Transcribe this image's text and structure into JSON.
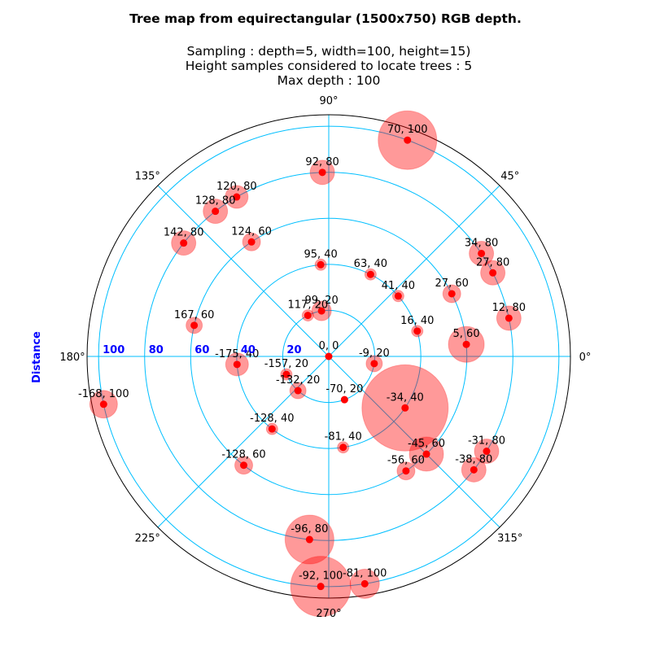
{
  "chart_data": {
    "type": "scatter",
    "projection": "polar",
    "title": "Tree map from equirectangular (1500x750) RGB depth.",
    "subtitle_lines": [
      "Sampling : depth=5, width=100, height=15)",
      "Height samples considered to locate trees : 5",
      "Max depth : 100"
    ],
    "ylabel": "Distance",
    "rlim": [
      0,
      105
    ],
    "r_ticks": [
      20,
      40,
      60,
      80,
      100
    ],
    "r_tick_labels": [
      "20",
      "40",
      "60",
      "80",
      "100"
    ],
    "theta_tick_labels": [
      "0°",
      "45°",
      "90°",
      "135°",
      "180°",
      "225°",
      "270°",
      "315°"
    ],
    "theta_ticks_deg": [
      0,
      45,
      90,
      135,
      180,
      225,
      270,
      315
    ],
    "grid": true,
    "colors": {
      "grid": "#00bfff",
      "point": "#ff0000",
      "bubble": "#ff0000",
      "bubble_alpha": 0.4,
      "r_label": "#0000ff",
      "frame": "#000000"
    },
    "points": [
      {
        "angle": 70,
        "distance": 100,
        "label": "70, 100",
        "size": 36
      },
      {
        "angle": 92,
        "distance": 80,
        "label": "92, 80",
        "size": 15
      },
      {
        "angle": 120,
        "distance": 80,
        "label": "120, 80",
        "size": 14
      },
      {
        "angle": 128,
        "distance": 80,
        "label": "128, 80",
        "size": 15
      },
      {
        "angle": 142,
        "distance": 80,
        "label": "142, 80",
        "size": 15
      },
      {
        "angle": 124,
        "distance": 60,
        "label": "124, 60",
        "size": 11
      },
      {
        "angle": 34,
        "distance": 80,
        "label": "34, 80",
        "size": 15
      },
      {
        "angle": 27,
        "distance": 80,
        "label": "27, 80",
        "size": 15
      },
      {
        "angle": 12,
        "distance": 80,
        "label": "12, 80",
        "size": 15
      },
      {
        "angle": 27,
        "distance": 60,
        "label": "27, 60",
        "size": 11
      },
      {
        "angle": 5,
        "distance": 60,
        "label": "5, 60",
        "size": 22
      },
      {
        "angle": 95,
        "distance": 40,
        "label": "95, 40",
        "size": 7
      },
      {
        "angle": 63,
        "distance": 40,
        "label": "63, 40",
        "size": 7
      },
      {
        "angle": 41,
        "distance": 40,
        "label": "41, 40",
        "size": 7
      },
      {
        "angle": 16,
        "distance": 40,
        "label": "16, 40",
        "size": 7
      },
      {
        "angle": 117,
        "distance": 20,
        "label": "117, 20",
        "size": 7
      },
      {
        "angle": 99,
        "distance": 20,
        "label": "99, 20",
        "size": 12
      },
      {
        "angle": 0,
        "distance": 0,
        "label": "0, 0",
        "size": 4
      },
      {
        "angle": -9,
        "distance": 20,
        "label": "-9, 20",
        "size": 10
      },
      {
        "angle": 167,
        "distance": 60,
        "label": "167, 60",
        "size": 10
      },
      {
        "angle": -175,
        "distance": 40,
        "label": "-175, 40",
        "size": 14
      },
      {
        "angle": -157,
        "distance": 20,
        "label": "-157, 20",
        "size": 7
      },
      {
        "angle": -132,
        "distance": 20,
        "label": "-132, 20",
        "size": 10
      },
      {
        "angle": -70,
        "distance": 20,
        "label": "-70, 20",
        "size": 4
      },
      {
        "angle": -34,
        "distance": 40,
        "label": "-34, 40",
        "size": 53
      },
      {
        "angle": -168,
        "distance": 100,
        "label": "-168, 100",
        "size": 17
      },
      {
        "angle": -128,
        "distance": 40,
        "label": "-128, 40",
        "size": 7
      },
      {
        "angle": -81,
        "distance": 40,
        "label": "-81, 40",
        "size": 7
      },
      {
        "angle": -45,
        "distance": 60,
        "label": "-45, 60",
        "size": 21
      },
      {
        "angle": -31,
        "distance": 80,
        "label": "-31, 80",
        "size": 15
      },
      {
        "angle": -56,
        "distance": 60,
        "label": "-56, 60",
        "size": 11
      },
      {
        "angle": -38,
        "distance": 80,
        "label": "-38, 80",
        "size": 15
      },
      {
        "angle": -128,
        "distance": 60,
        "label": "-128, 60",
        "size": 11
      },
      {
        "angle": -96,
        "distance": 80,
        "label": "-96, 80",
        "size": 30
      },
      {
        "angle": -92,
        "distance": 100,
        "label": "-92, 100",
        "size": 37
      },
      {
        "angle": -81,
        "distance": 100,
        "label": "-81, 100",
        "size": 18
      }
    ]
  }
}
